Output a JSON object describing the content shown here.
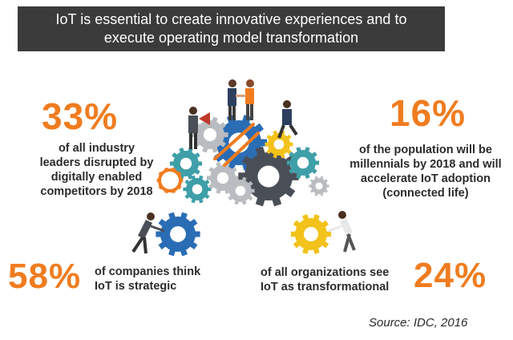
{
  "banner": {
    "line1": "IoT is essential to create innovative experiences and to",
    "line2": "execute operating model transformation"
  },
  "stats": {
    "s33": {
      "number": "33%",
      "text_lines": [
        "of all industry",
        "leaders disrupted by",
        "digitally enabled",
        "competitors by 2018"
      ]
    },
    "s16": {
      "number": "16%",
      "text_lines": [
        "of the population will be",
        "millennials by 2018 and will",
        "accelerate IoT adoption",
        "(connected life)"
      ]
    },
    "s58": {
      "number": "58%",
      "text_lines": [
        "of companies think",
        "IoT is strategic"
      ]
    },
    "s24": {
      "number": "24%",
      "text_lines": [
        "of all organizations see",
        "IoT as transformational"
      ]
    }
  },
  "source": "Source: IDC, 2016",
  "colors": {
    "accent_orange": "#f07c1f",
    "banner_bg": "#3b3b3b",
    "gear_blue": "#2a6db5",
    "gear_dark": "#4a4f57",
    "gear_teal": "#3f9fa8",
    "gear_yellow": "#f3c21b",
    "gear_gray": "#b9bcc0"
  },
  "icons": [
    "gear-cluster-illustration",
    "businessman-pushing-gear-icon",
    "woman-pushing-gear-icon",
    "businessmen-handshake-icon",
    "businessman-megaphone-icon",
    "businessman-climbing-icon"
  ]
}
